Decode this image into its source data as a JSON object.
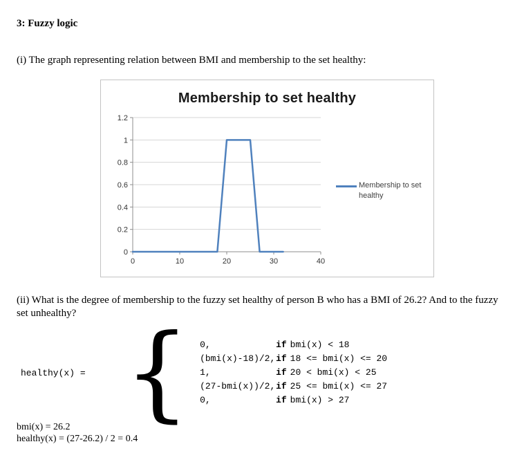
{
  "document": {
    "heading": "3: Fuzzy logic",
    "paragraph_i": "(i) The graph representing relation between BMI and membership to the set healthy:",
    "paragraph_ii": "(ii) What is the degree of membership to the fuzzy set healthy of person B who has a BMI of 26.2? And to the fuzzy set unhealthy?",
    "results": {
      "line1": "bmi(x) = 26.2",
      "line2": "healthy(x)  = (27-26.2) / 2 = 0.4"
    }
  },
  "function_block": {
    "lhs": "healthy(x) =",
    "brace": "{",
    "cases": [
      {
        "expr": "0,",
        "keyword": "if",
        "cond": "bmi(x) < 18"
      },
      {
        "expr": "(bmi(x)-18)/2,",
        "keyword": "if",
        "cond": "18 <= bmi(x) <= 20"
      },
      {
        "expr": "1,",
        "keyword": "if",
        "cond": "20 < bmi(x) < 25"
      },
      {
        "expr": "(27-bmi(x))/2,",
        "keyword": "if",
        "cond": "25 <= bmi(x) <= 27"
      },
      {
        "expr": "0,",
        "keyword": "if",
        "cond": "bmi(x) > 27"
      }
    ]
  },
  "chart_data": {
    "type": "line",
    "title": "Membership to set healthy",
    "series": [
      {
        "name": "Membership to set healthy",
        "color": "#4F81BD",
        "points": [
          [
            0,
            0
          ],
          [
            18,
            0
          ],
          [
            20,
            1
          ],
          [
            25,
            1
          ],
          [
            27,
            0
          ],
          [
            32,
            0
          ]
        ]
      }
    ],
    "x_ticks": [
      0,
      10,
      20,
      30,
      40
    ],
    "y_ticks": [
      0,
      0.2,
      0.4,
      0.6,
      0.8,
      1,
      1.2
    ],
    "xlim": [
      0,
      40
    ],
    "ylim": [
      0,
      1.2
    ],
    "grid": "horizontal",
    "legend_position": "right",
    "legend_label": "Membership to set healthy"
  }
}
